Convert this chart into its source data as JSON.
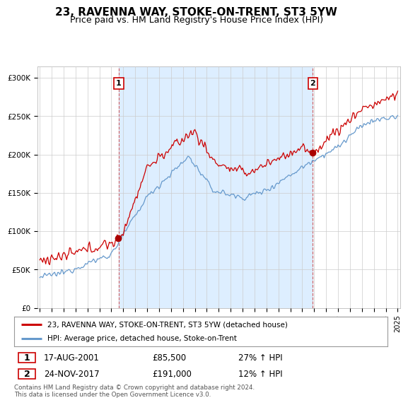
{
  "title": "23, RAVENNA WAY, STOKE-ON-TRENT, ST3 5YW",
  "subtitle": "Price paid vs. HM Land Registry's House Price Index (HPI)",
  "ylabel_ticks": [
    "£0",
    "£50K",
    "£100K",
    "£150K",
    "£200K",
    "£250K",
    "£300K"
  ],
  "ytick_vals": [
    0,
    50000,
    100000,
    150000,
    200000,
    250000,
    300000
  ],
  "ylim": [
    0,
    315000
  ],
  "sale1_date": "17-AUG-2001",
  "sale1_price": 85500,
  "sale1_hpi": "27% ↑ HPI",
  "sale1_label": "1",
  "sale2_date": "24-NOV-2017",
  "sale2_price": 191000,
  "sale2_hpi": "12% ↑ HPI",
  "sale2_label": "2",
  "legend_line1": "23, RAVENNA WAY, STOKE-ON-TRENT, ST3 5YW (detached house)",
  "legend_line2": "HPI: Average price, detached house, Stoke-on-Trent",
  "footer": "Contains HM Land Registry data © Crown copyright and database right 2024.\nThis data is licensed under the Open Government Licence v3.0.",
  "line_color_red": "#cc0000",
  "line_color_blue": "#6699cc",
  "shade_color": "#ddeeff",
  "sale_marker_color": "#aa0000",
  "background_color": "#ffffff",
  "grid_color": "#cccccc",
  "title_fontsize": 11,
  "subtitle_fontsize": 9,
  "tick_fontsize": 7.5,
  "x_start_year": 1995,
  "x_end_year": 2025
}
